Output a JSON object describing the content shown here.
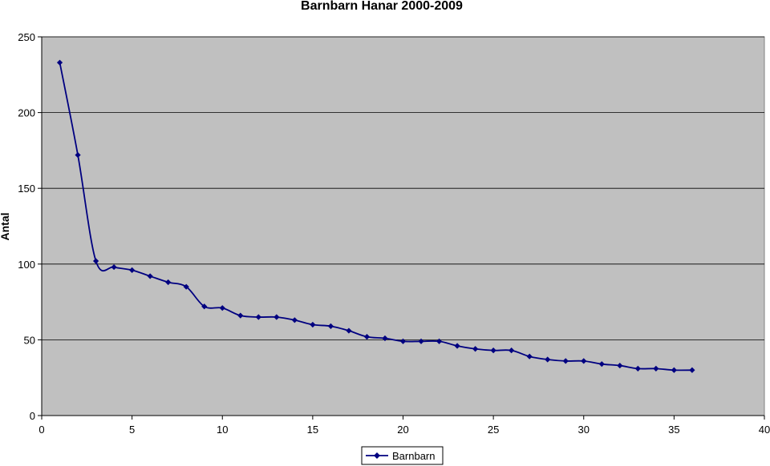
{
  "chart_data": {
    "type": "line",
    "title": "Barnbarn Hanar 2000-2009",
    "xlabel": "",
    "ylabel": "Antal",
    "xlim": [
      0,
      40
    ],
    "ylim": [
      0,
      250
    ],
    "xticks": [
      0,
      5,
      10,
      15,
      20,
      25,
      30,
      35,
      40
    ],
    "yticks": [
      0,
      50,
      100,
      150,
      200,
      250
    ],
    "grid": {
      "horizontal": true,
      "vertical": false
    },
    "legend": {
      "placement": "bottom-center"
    },
    "colors": {
      "plot_background": "#c0c0c0",
      "series": "#000080",
      "grid": "#000000"
    },
    "series": [
      {
        "name": "Barnbarn",
        "marker": "diamond",
        "x": [
          1,
          2,
          3,
          4,
          5,
          6,
          7,
          8,
          9,
          10,
          11,
          12,
          13,
          14,
          15,
          16,
          17,
          18,
          19,
          20,
          21,
          22,
          23,
          24,
          25,
          26,
          27,
          28,
          29,
          30,
          31,
          32,
          33,
          34,
          35,
          36
        ],
        "y": [
          233,
          172,
          102,
          98,
          96,
          92,
          88,
          85,
          72,
          71,
          66,
          65,
          65,
          63,
          60,
          59,
          56,
          52,
          51,
          49,
          49,
          49,
          46,
          44,
          43,
          43,
          39,
          37,
          36,
          36,
          34,
          33,
          31,
          31,
          30,
          30
        ]
      }
    ]
  }
}
